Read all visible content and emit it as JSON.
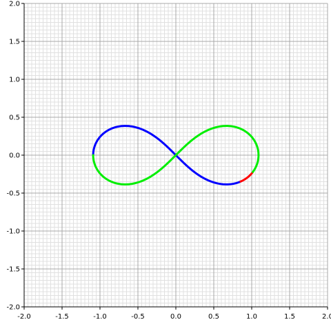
{
  "chart_data": {
    "type": "line",
    "title": "",
    "xlabel": "",
    "ylabel": "",
    "xlim": [
      -2.0,
      2.0
    ],
    "ylim": [
      -2.0,
      2.0
    ],
    "grid": true,
    "grid_minor_step": 0.05,
    "grid_major_step": 0.5,
    "x_ticks": [
      -2.0,
      -1.5,
      -1.0,
      -0.5,
      0.0,
      0.5,
      1.0,
      1.5,
      2.0
    ],
    "x_tick_labels": [
      "-2.0",
      "-1.5",
      "-1.0",
      "-0.5",
      "0.0",
      "0.5",
      "1.0",
      "1.5",
      "2.0"
    ],
    "y_ticks": [
      2.0,
      1.5,
      1.0,
      0.5,
      0.0,
      -0.5,
      -1.0,
      -1.5,
      -2.0
    ],
    "y_tick_labels": [
      "2.0",
      "1.5",
      "1.0",
      "0.5",
      "0.0",
      "-0.5",
      "-1.0",
      "-1.5",
      "-2.0"
    ],
    "curve": {
      "kind": "lemniscate-of-bernoulli",
      "a": 1.09,
      "samples": 400
    },
    "series": [
      {
        "color": "#0000ff",
        "t_range": [
          -1.0,
          0.0
        ],
        "comment_range": "blue segment"
      },
      {
        "color": "#00ee00",
        "t_range": [
          0.0,
          5.6
        ],
        "comment_range": "green segment"
      },
      {
        "color": "#ff0000",
        "t_range": [
          5.6,
          5.9
        ],
        "comment_range": "red segment"
      }
    ],
    "colors": {
      "axis": "#000000",
      "grid_minor": "#e0e0e0",
      "grid_major": "#a8a8a8",
      "blue": "#0000ff",
      "green": "#00ee00",
      "red": "#ff0000"
    }
  }
}
